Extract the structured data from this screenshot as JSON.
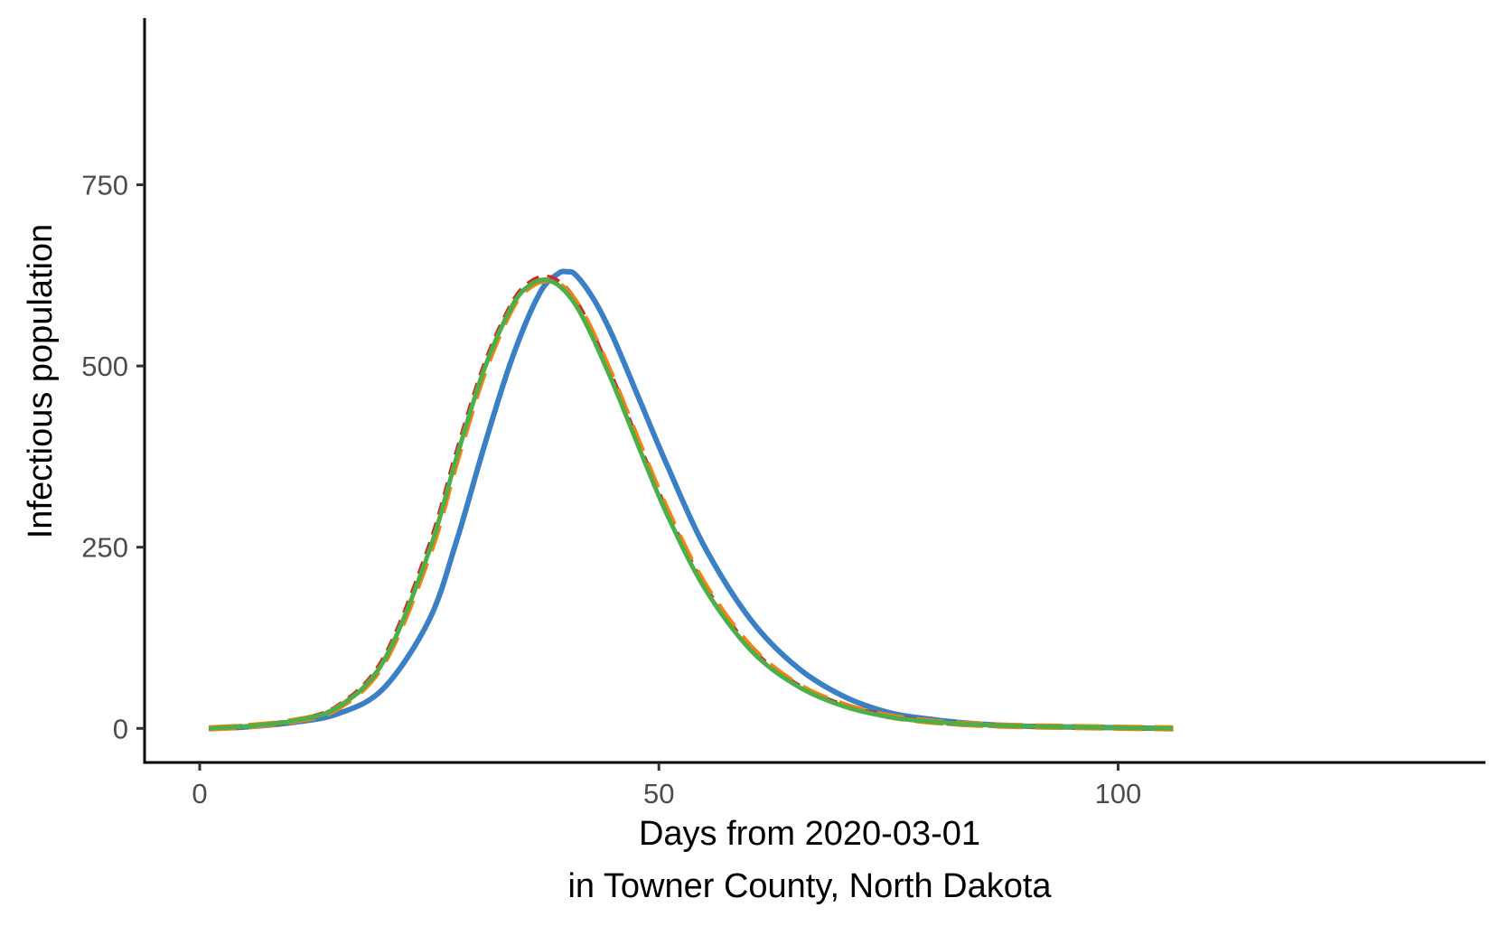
{
  "chart_data": {
    "type": "line",
    "xlabel_line1": "Days from 2020-03-01",
    "xlabel_line2": "in Towner County, North Dakota",
    "ylabel": "Infectious population",
    "xlim": [
      -6,
      140
    ],
    "ylim": [
      -47,
      980
    ],
    "x_ticks": [
      0,
      50,
      100
    ],
    "x_tick_labels": [
      "0",
      "50",
      "100"
    ],
    "y_ticks": [
      0,
      250,
      500,
      750
    ],
    "y_tick_labels": [
      "0",
      "250",
      "500",
      "750"
    ],
    "grid": false,
    "legend": "none",
    "series": [
      {
        "color": "#3b7fc4",
        "dash": "solid",
        "width": 6,
        "x": [
          1,
          5,
          10,
          15,
          20,
          25,
          28,
          31,
          34,
          37,
          39,
          40,
          41,
          43,
          45,
          48,
          51,
          55,
          60,
          65,
          70,
          75,
          80,
          85,
          90,
          95,
          100,
          106
        ],
        "y": [
          0,
          2,
          8,
          20,
          55,
          150,
          260,
          390,
          510,
          600,
          627,
          630,
          625,
          590,
          540,
          450,
          360,
          250,
          150,
          85,
          45,
          22,
          12,
          6,
          3,
          2,
          1,
          0
        ]
      },
      {
        "color": "#d62728",
        "dash": "14,9",
        "width": 6,
        "x": [
          1,
          5,
          10,
          15,
          20,
          25,
          28,
          31,
          34,
          36,
          38,
          40,
          42,
          45,
          48,
          51,
          55,
          60,
          65,
          70,
          75,
          80,
          85,
          90,
          95,
          100,
          106
        ],
        "y": [
          0,
          3,
          10,
          30,
          95,
          250,
          380,
          500,
          585,
          615,
          622,
          605,
          565,
          480,
          385,
          295,
          195,
          110,
          60,
          32,
          17,
          9,
          5,
          3,
          2,
          1,
          0
        ]
      },
      {
        "color": "#ff7f0e",
        "dash": "30,14",
        "width": 7,
        "x": [
          1,
          5,
          10,
          15,
          20,
          25,
          28,
          31,
          34,
          36,
          38,
          40,
          42,
          45,
          48,
          51,
          55,
          60,
          65,
          70,
          75,
          80,
          85,
          90,
          95,
          100,
          106
        ],
        "y": [
          0,
          3,
          10,
          28,
          90,
          240,
          370,
          492,
          580,
          610,
          618,
          603,
          565,
          482,
          388,
          298,
          198,
          112,
          61,
          33,
          17,
          9,
          5,
          3,
          2,
          1,
          0
        ]
      },
      {
        "color": "#4daf4a",
        "dash": "solid",
        "width": 5,
        "x": [
          1,
          5,
          10,
          15,
          20,
          25,
          28,
          31,
          34,
          36,
          38,
          40,
          42,
          45,
          48,
          51,
          55,
          60,
          65,
          70,
          75,
          80,
          85,
          90,
          95,
          100,
          106
        ],
        "y": [
          0,
          3,
          10,
          29,
          92,
          245,
          375,
          496,
          582,
          612,
          618,
          600,
          560,
          476,
          382,
          292,
          193,
          108,
          59,
          31,
          16,
          9,
          5,
          3,
          2,
          1,
          0
        ]
      }
    ]
  }
}
